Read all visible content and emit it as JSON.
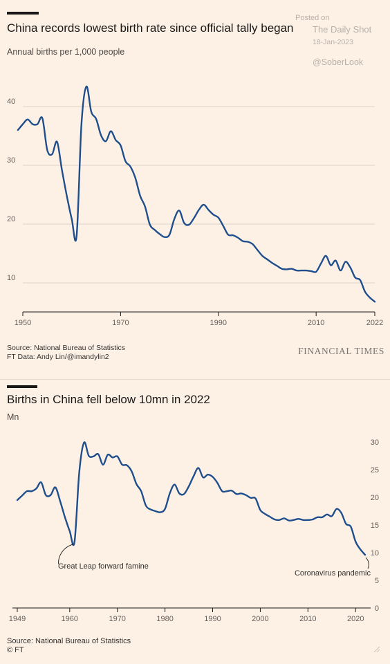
{
  "watermark": {
    "posted_on": "Posted on",
    "site": "The Daily Shot",
    "date": "18-Jan-2023",
    "handle": "@SoberLook"
  },
  "colors": {
    "background": "#fdf1e6",
    "line": "#1f4e8c",
    "grid": "#ddd3cb",
    "axis": "#1a1816"
  },
  "chart1": {
    "source_line1": "Source: National Bureau of Statistics",
    "source_line2": "FT Data: Andy Lin/@imandylin2",
    "logo": "FINANCIAL TIMES"
  },
  "chart2": {
    "source_line1": "Source: National Bureau of Statistics",
    "source_line2": "© FT",
    "annotations": [
      "Great Leap forward famine",
      "Coronavirus pandemic"
    ]
  },
  "chart_data": [
    {
      "type": "line",
      "title": "China records lowest birth rate since official tally began",
      "subtitle": "Annual births per 1,000 people",
      "xlabel": "",
      "ylabel": "",
      "xlim": [
        1950,
        2022
      ],
      "ylim": [
        4,
        48
      ],
      "x_ticks": [
        "1950",
        "1970",
        "1990",
        "2010",
        "2022"
      ],
      "y_ticks": [
        "10",
        "20",
        "30",
        "40"
      ],
      "grid": true,
      "series": [
        {
          "x": [
            1949,
            1950,
            1951,
            1952,
            1953,
            1954,
            1955,
            1956,
            1957,
            1958,
            1959,
            1960,
            1961,
            1962,
            1963,
            1964,
            1965,
            1966,
            1967,
            1968,
            1969,
            1970,
            1971,
            1972,
            1973,
            1974,
            1975,
            1976,
            1977,
            1978,
            1979,
            1980,
            1981,
            1982,
            1983,
            1984,
            1985,
            1986,
            1987,
            1988,
            1989,
            1990,
            1991,
            1992,
            1993,
            1994,
            1995,
            1996,
            1997,
            1998,
            1999,
            2000,
            2001,
            2002,
            2003,
            2004,
            2005,
            2006,
            2007,
            2008,
            2009,
            2010,
            2011,
            2012,
            2013,
            2014,
            2015,
            2016,
            2017,
            2018,
            2019,
            2020,
            2021,
            2022
          ],
          "values": [
            36.0,
            37.0,
            37.8,
            37.0,
            37.0,
            38.0,
            32.6,
            31.9,
            34.0,
            29.2,
            24.8,
            20.9,
            18.0,
            37.0,
            43.4,
            39.1,
            37.9,
            35.1,
            34.1,
            35.8,
            34.3,
            33.4,
            30.7,
            29.8,
            27.9,
            24.8,
            23.0,
            19.9,
            19.0,
            18.3,
            17.8,
            18.2,
            20.9,
            22.3,
            20.2,
            19.9,
            21.0,
            22.4,
            23.3,
            22.4,
            21.6,
            21.1,
            19.7,
            18.2,
            18.1,
            17.7,
            17.1,
            17.0,
            16.6,
            15.6,
            14.6,
            14.0,
            13.4,
            12.9,
            12.4,
            12.3,
            12.4,
            12.1,
            12.1,
            12.1,
            12.0,
            11.9,
            13.3,
            14.6,
            13.0,
            13.8,
            12.1,
            13.6,
            12.6,
            10.9,
            10.5,
            8.5,
            7.5,
            6.8
          ]
        }
      ]
    },
    {
      "type": "line",
      "title": "Births in China fell below 10mn in 2022",
      "subtitle": "Mn",
      "xlabel": "",
      "ylabel": "Mn",
      "xlim": [
        1949,
        2022
      ],
      "ylim": [
        0,
        30
      ],
      "x_ticks": [
        "1949",
        "1960",
        "1970",
        "1980",
        "1990",
        "2000",
        "2010",
        "2020"
      ],
      "y_ticks": [
        "0",
        "5",
        "10",
        "15",
        "20",
        "25",
        "30"
      ],
      "grid": false,
      "annotations": [
        {
          "text": "Great Leap forward famine",
          "x": 1961,
          "y": 11.9
        },
        {
          "text": "Coronavirus pandemic",
          "x": 2022,
          "y": 9.6
        }
      ],
      "series": [
        {
          "x": [
            1949,
            1950,
            1951,
            1952,
            1953,
            1954,
            1955,
            1956,
            1957,
            1958,
            1959,
            1960,
            1961,
            1962,
            1963,
            1964,
            1965,
            1966,
            1967,
            1968,
            1969,
            1970,
            1971,
            1972,
            1973,
            1974,
            1975,
            1976,
            1977,
            1978,
            1979,
            1980,
            1981,
            1982,
            1983,
            1984,
            1985,
            1986,
            1987,
            1988,
            1989,
            1990,
            1991,
            1992,
            1993,
            1994,
            1995,
            1996,
            1997,
            1998,
            1999,
            2000,
            2001,
            2002,
            2003,
            2004,
            2005,
            2006,
            2007,
            2008,
            2009,
            2010,
            2011,
            2012,
            2013,
            2014,
            2015,
            2016,
            2017,
            2018,
            2019,
            2020,
            2021,
            2022
          ],
          "values": [
            19.5,
            20.3,
            21.1,
            21.1,
            21.6,
            22.7,
            20.4,
            20.4,
            21.8,
            19.3,
            16.4,
            13.9,
            11.9,
            24.5,
            29.9,
            27.5,
            27.4,
            27.8,
            25.9,
            27.7,
            27.2,
            27.4,
            25.9,
            25.8,
            24.7,
            22.4,
            21.1,
            18.5,
            17.8,
            17.5,
            17.3,
            17.9,
            20.7,
            22.3,
            20.7,
            20.6,
            22.0,
            23.8,
            25.3,
            23.6,
            24.1,
            23.7,
            22.6,
            21.1,
            21.1,
            21.2,
            20.6,
            20.7,
            20.4,
            19.9,
            19.8,
            17.7,
            17.0,
            16.5,
            16.0,
            15.9,
            16.2,
            15.8,
            15.9,
            16.1,
            15.9,
            15.9,
            16.0,
            16.4,
            16.4,
            16.9,
            16.6,
            17.9,
            17.2,
            15.2,
            14.7,
            12.0,
            10.6,
            9.6
          ]
        }
      ]
    }
  ]
}
